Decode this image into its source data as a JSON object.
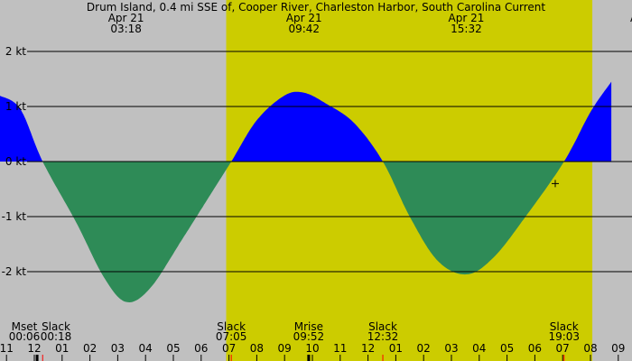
{
  "colors": {
    "background": "#c0c0c0",
    "daylight": "#cccc00",
    "flood": "#0000ff",
    "ebb": "#2e8b57",
    "gridline": "#000000",
    "moon_marker": "#000000",
    "slack_marker": "#ff0000"
  },
  "chart_data": {
    "type": "area",
    "title": "Drum Island, 0.4 mi SSE of, Cooper River, Charleston Harbor, South Carolina Current",
    "xlabel": "",
    "ylabel": "kt",
    "ylim": [
      -2.9,
      3.0
    ],
    "grid": true,
    "y_ticks": [
      {
        "value": 2,
        "label": "2 kt"
      },
      {
        "value": 1,
        "label": "1 kt"
      },
      {
        "value": 0,
        "label": "0 kt"
      },
      {
        "value": -1,
        "label": "-1 kt"
      },
      {
        "value": -2,
        "label": "-2 kt"
      }
    ],
    "x_start_hour": -1.23,
    "x_end_hour": 33.5,
    "x_ticks": [
      {
        "hour": 23,
        "label": "11"
      },
      {
        "hour": 24,
        "label": "12"
      },
      {
        "hour": 25,
        "label": "01"
      },
      {
        "hour": 26,
        "label": "02"
      },
      {
        "hour": 27,
        "label": "03"
      },
      {
        "hour": 28,
        "label": "04"
      },
      {
        "hour": 29,
        "label": "05"
      },
      {
        "hour": 30,
        "label": "06"
      },
      {
        "hour": 31,
        "label": "07"
      },
      {
        "hour": 32,
        "label": "08"
      },
      {
        "hour": 33,
        "label": "09"
      },
      {
        "hour": 34,
        "label": "10"
      },
      {
        "hour": 35,
        "label": "11"
      },
      {
        "hour": 36,
        "label": "12"
      },
      {
        "hour": 37,
        "label": "01"
      },
      {
        "hour": 38,
        "label": "02"
      },
      {
        "hour": 39,
        "label": "03"
      },
      {
        "hour": 40,
        "label": "04"
      },
      {
        "hour": 41,
        "label": "05"
      },
      {
        "hour": 42,
        "label": "06"
      },
      {
        "hour": 43,
        "label": "07"
      },
      {
        "hour": 44,
        "label": "08"
      },
      {
        "hour": 45,
        "label": "09"
      }
    ],
    "daylight": {
      "start": "06:54",
      "end": "20:04"
    },
    "series": [
      {
        "name": "Current (kt)",
        "x": [
          "-01:15",
          "-00:30",
          "00:18",
          "01:30",
          "02:30",
          "03:18",
          "04:10",
          "05:20",
          "06:20",
          "07:05",
          "08:00",
          "09:00",
          "09:42",
          "10:30",
          "11:30",
          "12:32",
          "13:30",
          "14:30",
          "15:32",
          "16:30",
          "17:40",
          "19:03",
          "20:00",
          "20:45"
        ],
        "values": [
          1.2,
          0.95,
          0.0,
          -1.1,
          -2.1,
          -2.55,
          -2.3,
          -1.4,
          -0.6,
          0.0,
          0.75,
          1.2,
          1.25,
          1.05,
          0.7,
          0.0,
          -1.0,
          -1.8,
          -2.05,
          -1.75,
          -1.0,
          0.0,
          0.9,
          1.45
        ]
      }
    ],
    "extrema_labels": [
      {
        "date": "Apr 21",
        "time": "03:18",
        "type": "max ebb",
        "value": -2.55
      },
      {
        "date": "Apr 21",
        "time": "09:42",
        "type": "max flood",
        "value": 1.25
      },
      {
        "date": "Apr 21",
        "time": "15:32",
        "type": "max ebb",
        "value": -2.05
      },
      {
        "date": "A",
        "time": "",
        "type": "clipped",
        "value": null
      }
    ],
    "events": [
      {
        "label": "Mset",
        "time": "00:06"
      },
      {
        "label": "Slack",
        "time": "00:18"
      },
      {
        "label": "Slack",
        "time": "07:05"
      },
      {
        "label": "Mrise",
        "time": "09:52"
      },
      {
        "label": "Slack",
        "time": "12:32"
      },
      {
        "label": "Slack",
        "time": "19:03"
      }
    ],
    "annotations": [
      {
        "type": "crosshair",
        "symbol": "+",
        "time": "18:44",
        "value": -0.4
      }
    ]
  }
}
